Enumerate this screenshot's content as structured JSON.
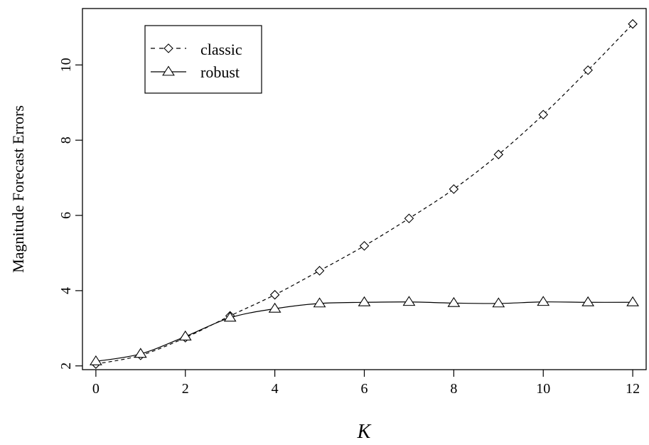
{
  "chart_data": {
    "type": "line",
    "xlabel": "K",
    "ylabel": "Magnitude Forecast Errors",
    "x": [
      0,
      1,
      2,
      3,
      4,
      5,
      6,
      7,
      8,
      9,
      10,
      11,
      12
    ],
    "xlim": [
      -0.3,
      12.3
    ],
    "ylim": [
      1.9,
      11.5
    ],
    "xticks": [
      0,
      2,
      4,
      6,
      8,
      10,
      12
    ],
    "yticks": [
      2,
      4,
      6,
      8,
      10
    ],
    "grid": false,
    "legend_position": "top-left",
    "series": [
      {
        "name": "classic",
        "marker": "diamond",
        "line_style": "dashed",
        "color": "#000000",
        "values": [
          2.05,
          2.28,
          2.75,
          3.33,
          3.89,
          4.53,
          5.19,
          5.92,
          6.7,
          7.62,
          8.68,
          9.86,
          11.09
        ]
      },
      {
        "name": "robust",
        "marker": "triangle",
        "line_style": "solid",
        "color": "#000000",
        "values": [
          2.12,
          2.32,
          2.78,
          3.28,
          3.52,
          3.66,
          3.69,
          3.7,
          3.67,
          3.66,
          3.7,
          3.69,
          3.69
        ]
      }
    ]
  }
}
